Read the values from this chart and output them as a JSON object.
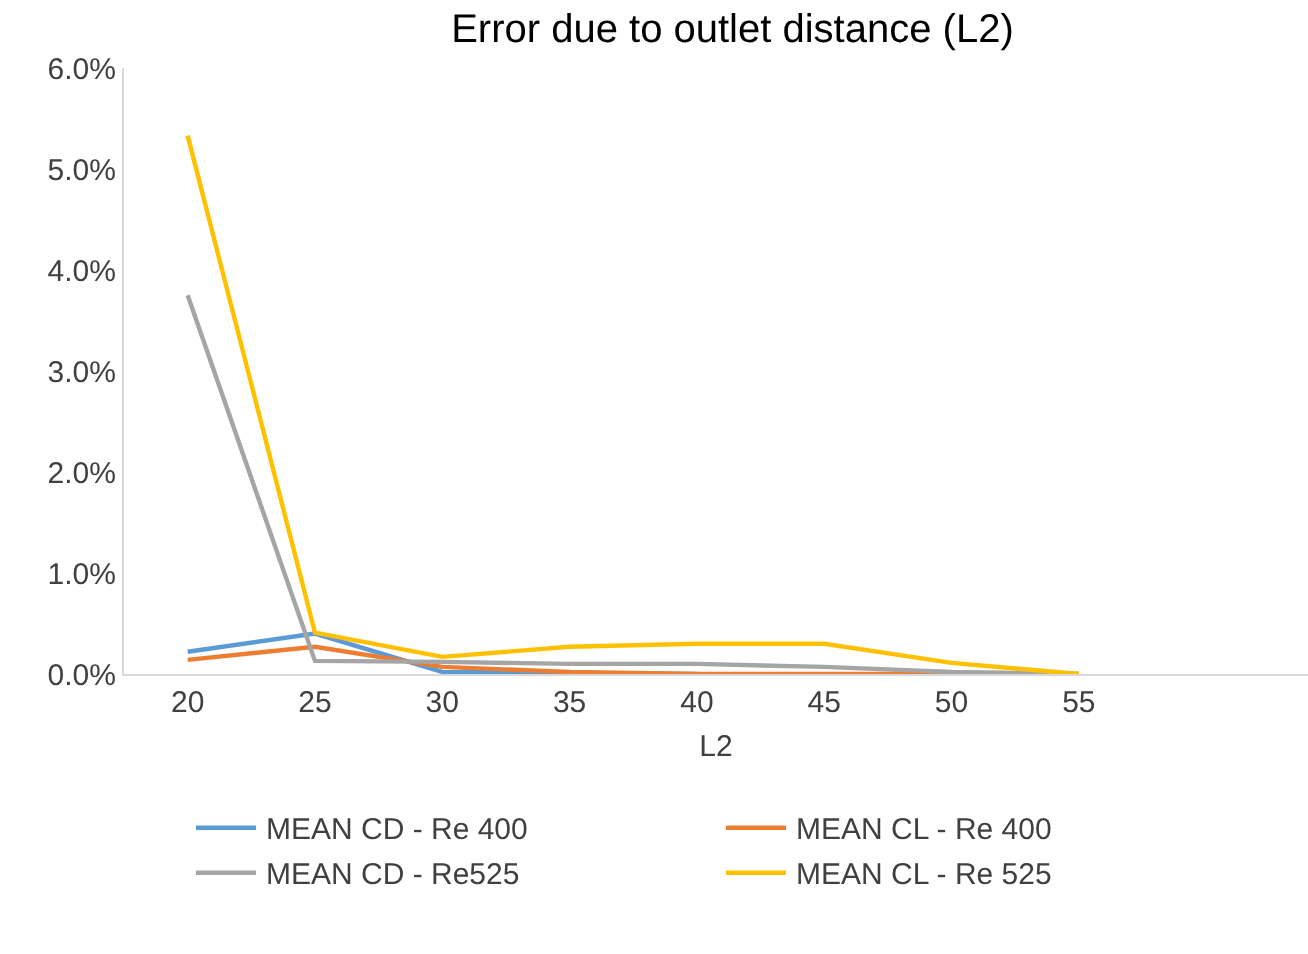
{
  "chart_data": {
    "type": "line",
    "title": "Error due to outlet distance (L2)",
    "xlabel": "L2",
    "categories": [
      "20",
      "25",
      "30",
      "35",
      "40",
      "45",
      "50",
      "55"
    ],
    "series": [
      {
        "name": "MEAN CD - Re 400",
        "color": "#5b9bd5",
        "values": [
          0.22,
          0.4,
          0.02,
          0.01,
          0,
          null,
          null,
          null
        ]
      },
      {
        "name": "MEAN CL - Re 400",
        "color": "#ed7d31",
        "values": [
          0.14,
          0.27,
          0.07,
          0.02,
          0,
          0,
          0,
          0
        ]
      },
      {
        "name": "MEAN CD - Re525",
        "color": "#a5a5a5",
        "values": [
          3.75,
          0.13,
          0.12,
          0.1,
          0.1,
          0.07,
          0.02,
          0
        ]
      },
      {
        "name": "MEAN CL - Re 525",
        "color": "#ffc000",
        "values": [
          5.33,
          0.41,
          0.17,
          0.27,
          0.3,
          0.3,
          0.11,
          0
        ]
      }
    ],
    "ylim": [
      0,
      6
    ],
    "yticks": [
      {
        "value": 0,
        "label": "0.0%"
      },
      {
        "value": 1,
        "label": "1.0%"
      },
      {
        "value": 2,
        "label": "2.0%"
      },
      {
        "value": 3,
        "label": "3.0%"
      },
      {
        "value": 4,
        "label": "4.0%"
      },
      {
        "value": 5,
        "label": "5.0%"
      },
      {
        "value": 6,
        "label": "6.0%"
      }
    ],
    "grid": false,
    "legend": "bottom",
    "marker": "none",
    "line_style": "solid"
  }
}
